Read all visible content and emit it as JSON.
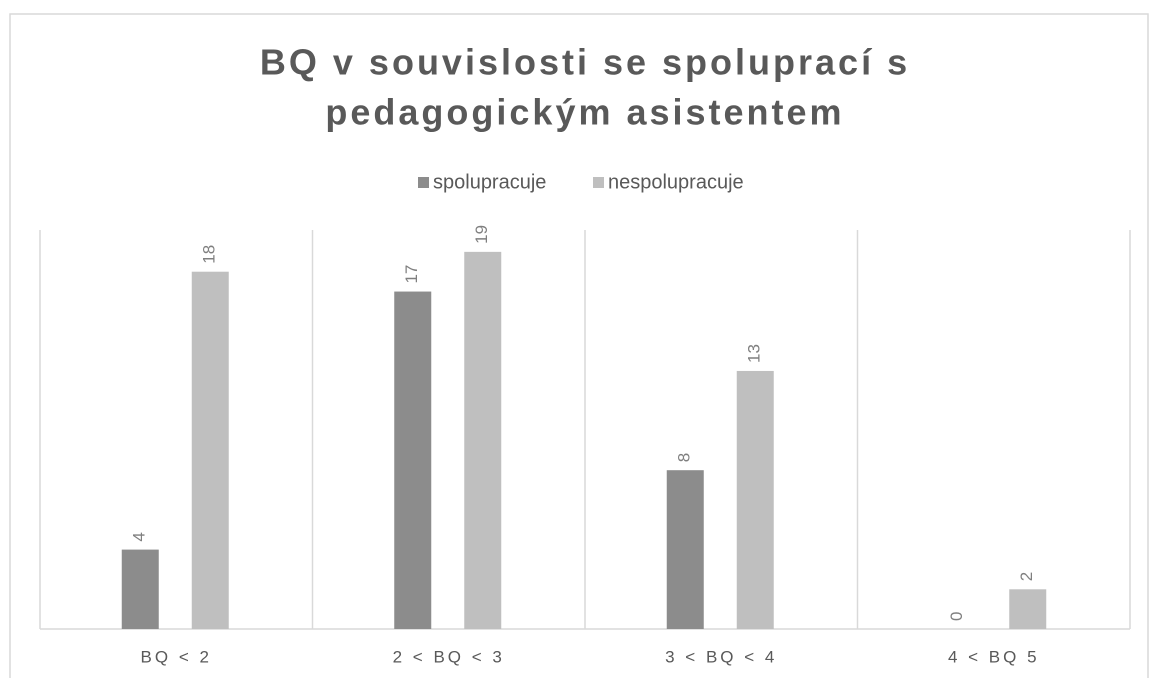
{
  "chart_data": {
    "type": "bar",
    "title": [
      "BQ v souvislosti se spoluprací s",
      "pedagogickým asistentem"
    ],
    "categories": [
      "BQ < 2",
      "2 < BQ < 3",
      "3 < BQ < 4",
      "4 < BQ 5"
    ],
    "series": [
      {
        "name": "spolupracuje",
        "color": "#8c8c8c",
        "values": [
          4,
          17,
          8,
          0
        ]
      },
      {
        "name": "nespolupracuje",
        "color": "#bfbfbf",
        "values": [
          18,
          19,
          13,
          2
        ]
      }
    ],
    "ylim": [
      0,
      20
    ],
    "legend": "top",
    "data_labels": true
  }
}
